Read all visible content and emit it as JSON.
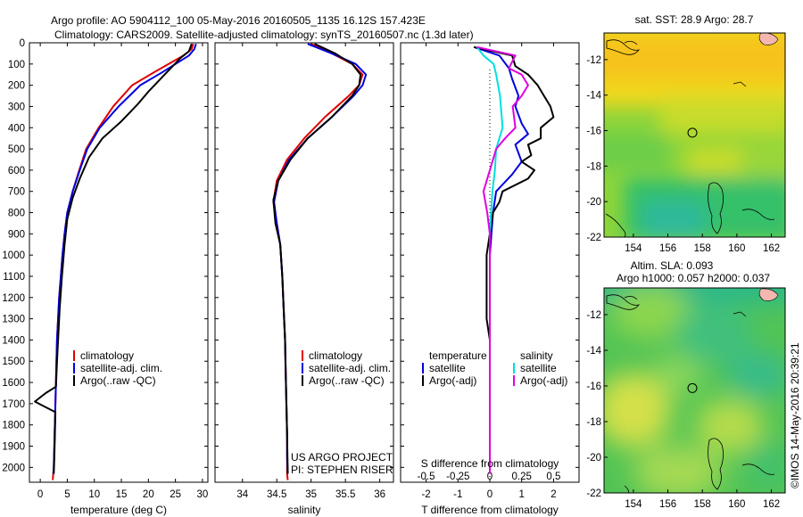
{
  "figure": {
    "title_line1": "Argo profile: AO 5904112_100 05-May-2016 20160505_1135 16.12S 157.423E",
    "title_line2": "Climatology: CARS2009. Satellite-adjusted climatology: synTS_20160507.nc (1.3d later)",
    "credit": "US ARGO PROJECT",
    "pi": "PI: STEPHEN RISER",
    "timestamp": "©IMOS 14-May-2016 20:39:21"
  },
  "colors": {
    "climatology": "#e00000",
    "satellite": "#0000e0",
    "argo": "#000000",
    "salinity_sat": "#00e0e0",
    "salinity_argo": "#e000e0"
  },
  "chart_data": [
    {
      "type": "line",
      "name": "temperature-profile",
      "xlabel": "temperature (deg C)",
      "ylabel": "",
      "xlim": [
        -2,
        31
      ],
      "ylim": [
        2070,
        0
      ],
      "xticks": [
        0,
        5,
        10,
        15,
        20,
        25,
        30
      ],
      "yticks": [
        0,
        100,
        200,
        300,
        400,
        500,
        600,
        700,
        800,
        900,
        1000,
        1100,
        1200,
        1300,
        1400,
        1500,
        1600,
        1700,
        1800,
        1900,
        2000
      ],
      "legend": [
        "climatology",
        "satellite-adj. clim.",
        "Argo(..raw -QC)"
      ],
      "series": [
        {
          "name": "climatology",
          "color": "#e00000",
          "x": [
            28.3,
            28.0,
            26.5,
            21.0,
            17.0,
            13.5,
            10.8,
            8.5,
            7.2,
            6.0,
            5.0,
            4.5,
            4.1,
            3.8,
            3.5,
            3.3,
            3.1,
            3.0,
            2.9,
            2.8,
            2.7,
            2.6,
            2.5,
            2.4,
            2.3
          ],
          "y": [
            5,
            30,
            60,
            140,
            200,
            300,
            400,
            500,
            600,
            700,
            800,
            900,
            1000,
            1100,
            1200,
            1300,
            1400,
            1500,
            1600,
            1700,
            1800,
            1900,
            2000,
            2030,
            2060
          ]
        },
        {
          "name": "satellite",
          "color": "#0000e0",
          "x": [
            28.8,
            28.5,
            27.5,
            22.5,
            18.5,
            14.5,
            11.0,
            8.7,
            7.3,
            6.0,
            5.0,
            4.5,
            4.1,
            3.8,
            3.5,
            3.3,
            3.1,
            3.0,
            2.9,
            2.8,
            2.7,
            2.6,
            2.5,
            2.4
          ],
          "y": [
            5,
            30,
            60,
            140,
            200,
            300,
            400,
            500,
            600,
            700,
            800,
            900,
            1000,
            1100,
            1200,
            1300,
            1400,
            1500,
            1600,
            1700,
            1800,
            1900,
            2000,
            2030
          ]
        },
        {
          "name": "argo",
          "color": "#000000",
          "x": [
            28.0,
            27.5,
            26.0,
            23.0,
            20.0,
            18.0,
            15.0,
            11.5,
            9.0,
            7.3,
            6.0,
            5.0,
            4.5,
            4.0,
            3.6,
            3.3,
            3.1,
            3.0,
            2.9,
            1.0,
            -1.0,
            0.5,
            2.8,
            2.7,
            2.6,
            2.5
          ],
          "y": [
            5,
            40,
            70,
            150,
            230,
            290,
            370,
            450,
            540,
            640,
            730,
            830,
            950,
            1100,
            1250,
            1400,
            1500,
            1560,
            1620,
            1650,
            1690,
            1710,
            1740,
            1850,
            1950,
            2030
          ]
        }
      ]
    },
    {
      "type": "line",
      "name": "salinity-profile",
      "xlabel": "salinity",
      "ylabel": "",
      "xlim": [
        33.6,
        36.2
      ],
      "ylim": [
        2070,
        0
      ],
      "xticks": [
        34,
        34.5,
        35,
        35.5,
        36
      ],
      "legend": [
        "climatology",
        "satellite-adj. clim.",
        "Argo(..raw -QC)"
      ],
      "series": [
        {
          "name": "climatology",
          "color": "#e00000",
          "x": [
            35.0,
            35.3,
            35.6,
            35.75,
            35.7,
            35.55,
            35.2,
            34.9,
            34.65,
            34.5,
            34.45,
            34.5,
            34.55,
            34.58,
            34.6,
            34.62,
            34.63,
            34.64,
            34.65,
            34.65,
            34.65,
            34.66
          ],
          "y": [
            5,
            50,
            100,
            150,
            200,
            250,
            350,
            450,
            550,
            650,
            750,
            850,
            950,
            1100,
            1250,
            1400,
            1550,
            1700,
            1850,
            1950,
            2030,
            2060
          ]
        },
        {
          "name": "satellite",
          "color": "#0000e0",
          "x": [
            34.95,
            35.3,
            35.65,
            35.8,
            35.75,
            35.62,
            35.3,
            34.95,
            34.68,
            34.52,
            34.46,
            34.5,
            34.55,
            34.58,
            34.6,
            34.62,
            34.63,
            34.64,
            34.65,
            34.65,
            34.66
          ],
          "y": [
            5,
            50,
            100,
            150,
            200,
            250,
            350,
            450,
            550,
            650,
            750,
            850,
            950,
            1100,
            1250,
            1400,
            1550,
            1700,
            1850,
            1950,
            2030
          ]
        },
        {
          "name": "argo",
          "color": "#000000",
          "x": [
            35.05,
            35.35,
            35.6,
            35.72,
            35.7,
            35.6,
            35.3,
            34.95,
            34.7,
            34.52,
            34.45,
            34.48,
            34.55,
            34.58,
            34.6,
            34.62,
            34.63,
            34.64,
            34.65,
            34.66
          ],
          "y": [
            5,
            50,
            100,
            150,
            200,
            250,
            350,
            450,
            550,
            650,
            740,
            850,
            950,
            1100,
            1250,
            1400,
            1550,
            1700,
            1850,
            2030
          ]
        }
      ]
    },
    {
      "type": "line",
      "name": "difference-profile",
      "xlabel": "T difference from climatology",
      "x2label": "S difference from climatology",
      "ylabel": "",
      "xlim": [
        -2.8,
        2.8
      ],
      "ylim": [
        2070,
        0
      ],
      "xticks": [
        -2,
        -1,
        0,
        1,
        2
      ],
      "x2ticks": [
        -0.5,
        -0.25,
        0,
        0.25,
        0.5
      ],
      "legend_headers": [
        "temperature",
        "salinity"
      ],
      "legend": [
        "satellite",
        "Argo(-adj)",
        "satellite",
        "Argo(-adj)"
      ],
      "series": [
        {
          "name": "T satellite",
          "color": "#0000e0",
          "x": [
            -0.5,
            0.3,
            0.6,
            0.7,
            0.9,
            0.8,
            1.0,
            1.2,
            0.8,
            1.0,
            0.7,
            0.2,
            0.1,
            0.05,
            0.0,
            0.0,
            0.0
          ],
          "y": [
            20,
            60,
            120,
            170,
            250,
            300,
            380,
            430,
            480,
            560,
            620,
            700,
            800,
            900,
            1000,
            1500,
            2030
          ]
        },
        {
          "name": "T Argo(-adj)",
          "color": "#000000",
          "x": [
            -0.5,
            0.7,
            0.8,
            1.2,
            1.5,
            1.7,
            1.9,
            2.0,
            1.6,
            1.6,
            1.2,
            1.3,
            1.0,
            1.4,
            1.2,
            0.4,
            0.3,
            0.1,
            0.0,
            -0.1,
            -0.1,
            0.0,
            0.0
          ],
          "y": [
            20,
            60,
            110,
            150,
            200,
            250,
            300,
            350,
            400,
            450,
            480,
            530,
            560,
            600,
            640,
            700,
            750,
            800,
            900,
            1000,
            1300,
            1400,
            2030
          ]
        },
        {
          "name": "S satellite",
          "color": "#00e0e0",
          "x": [
            -0.1,
            -0.05,
            0.03,
            0.05,
            0.08,
            0.1,
            0.05,
            0.04,
            0.02,
            0.01,
            0.0,
            0.0,
            0.0
          ],
          "y": [
            20,
            60,
            100,
            150,
            250,
            400,
            500,
            600,
            700,
            800,
            900,
            1200,
            2030
          ]
        },
        {
          "name": "S Argo(-adj)",
          "color": "#e000e0",
          "x": [
            -0.1,
            0.2,
            0.15,
            0.25,
            0.3,
            0.25,
            0.18,
            0.2,
            0.12,
            0.05,
            -0.05,
            -0.02,
            0.0,
            0.0,
            0.0
          ],
          "y": [
            20,
            60,
            120,
            150,
            200,
            250,
            300,
            400,
            450,
            500,
            700,
            800,
            900,
            1500,
            2030
          ]
        }
      ]
    },
    {
      "type": "heatmap",
      "name": "sst-map",
      "title": "sat. SST: 28.9  Argo: 28.7",
      "xlim": [
        152.3,
        162.8
      ],
      "ylim": [
        -22,
        -10.5
      ],
      "xticks": [
        154,
        156,
        158,
        160,
        162
      ],
      "yticks": [
        -12,
        -14,
        -16,
        -18,
        -20,
        -22
      ],
      "argo_marker": {
        "lon": 157.423,
        "lat": -16.12
      }
    },
    {
      "type": "heatmap",
      "name": "sla-map",
      "title": "Altim. SLA: 0.093",
      "subtitle": "Argo h1000: 0.057 h2000: 0.037",
      "xlim": [
        152.3,
        162.8
      ],
      "ylim": [
        -22,
        -10.5
      ],
      "xticks": [
        154,
        156,
        158,
        160,
        162
      ],
      "yticks": [
        -12,
        -14,
        -16,
        -18,
        -20,
        -22
      ],
      "argo_marker": {
        "lon": 157.423,
        "lat": -16.12
      }
    }
  ]
}
